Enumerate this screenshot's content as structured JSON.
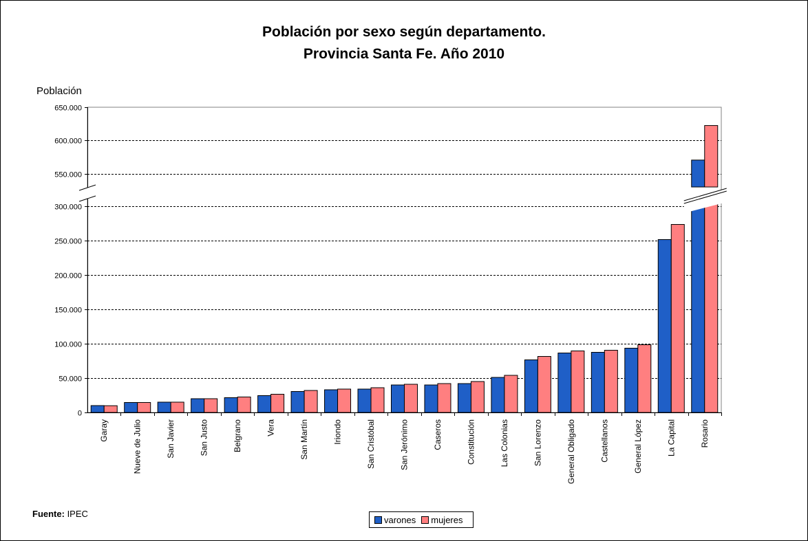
{
  "title_line1": "Población por sexo según departamento.",
  "title_line2": "Provincia Santa Fe. Año 2010",
  "source_label": "Fuente:",
  "source_value": " IPEC",
  "colors": {
    "varones": "#1f5fc7",
    "mujeres": "#ff7f80",
    "grid": "#000000"
  },
  "chart_data": {
    "type": "bar",
    "title": "Población por sexo según departamento. Provincia Santa Fe. Año 2010",
    "ylabel": "Población",
    "xlabel": "",
    "ylim_lower": [
      0,
      310000
    ],
    "ylim_upper": [
      530000,
      650000
    ],
    "axis_break": true,
    "yticks_lower": [
      "0",
      "50.000",
      "100.000",
      "150.000",
      "200.000",
      "250.000",
      "300.000"
    ],
    "yticks_lower_values": [
      0,
      50000,
      100000,
      150000,
      200000,
      250000,
      300000
    ],
    "yticks_upper": [
      "550.000",
      "600.000",
      "650.000"
    ],
    "yticks_upper_values": [
      550000,
      600000,
      650000
    ],
    "grid": true,
    "legend_position": "bottom-center",
    "categories": [
      "Garay",
      "Nueve de Julio",
      "San Javier",
      "San Justo",
      "Belgrano",
      "Vera",
      "San Martín",
      "Iriondo",
      "San Cristóbal",
      "San Jerónimo",
      "Caseros",
      "Constitución",
      "Las Colonias",
      "San Lorenzo",
      "General Obligado",
      "Castellanos",
      "General López",
      "La Capital",
      "Rosario"
    ],
    "series": [
      {
        "name": "varones",
        "values": [
          10000,
          14500,
          15000,
          20000,
          21500,
          24500,
          30500,
          33000,
          34000,
          40000,
          40000,
          42000,
          51000,
          76500,
          86500,
          87500,
          93500,
          251500,
          570500
        ]
      },
      {
        "name": "mujeres",
        "values": [
          9800,
          14500,
          15000,
          20000,
          22500,
          26500,
          32000,
          34000,
          36000,
          41000,
          42000,
          45000,
          54000,
          81500,
          89500,
          90500,
          98500,
          273500,
          622500
        ]
      }
    ]
  }
}
